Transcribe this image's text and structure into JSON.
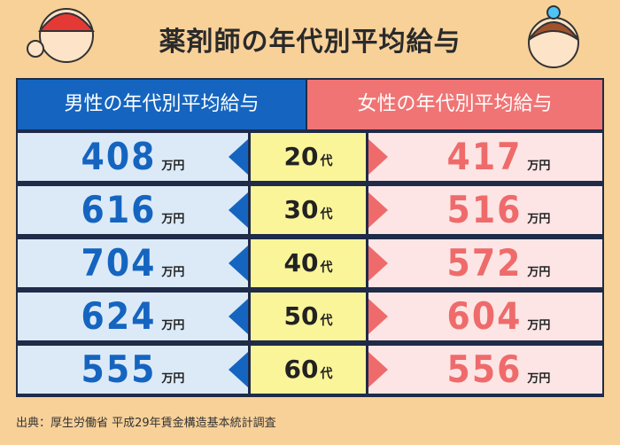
{
  "title": "薬剤師の年代別平均給与",
  "headers": {
    "male": "男性の年代別平均給与",
    "female": "女性の年代別平均給与"
  },
  "unit": "万円",
  "age_suffix": "代",
  "rows": [
    {
      "age": 20,
      "male": 408,
      "female": 417
    },
    {
      "age": 30,
      "male": 616,
      "female": 516
    },
    {
      "age": 40,
      "male": 704,
      "female": 572
    },
    {
      "age": 50,
      "male": 624,
      "female": 604
    },
    {
      "age": 60,
      "male": 555,
      "female": 556
    }
  ],
  "source": "出典：厚生労働省 平成29年賃金構造基本統計調査"
}
